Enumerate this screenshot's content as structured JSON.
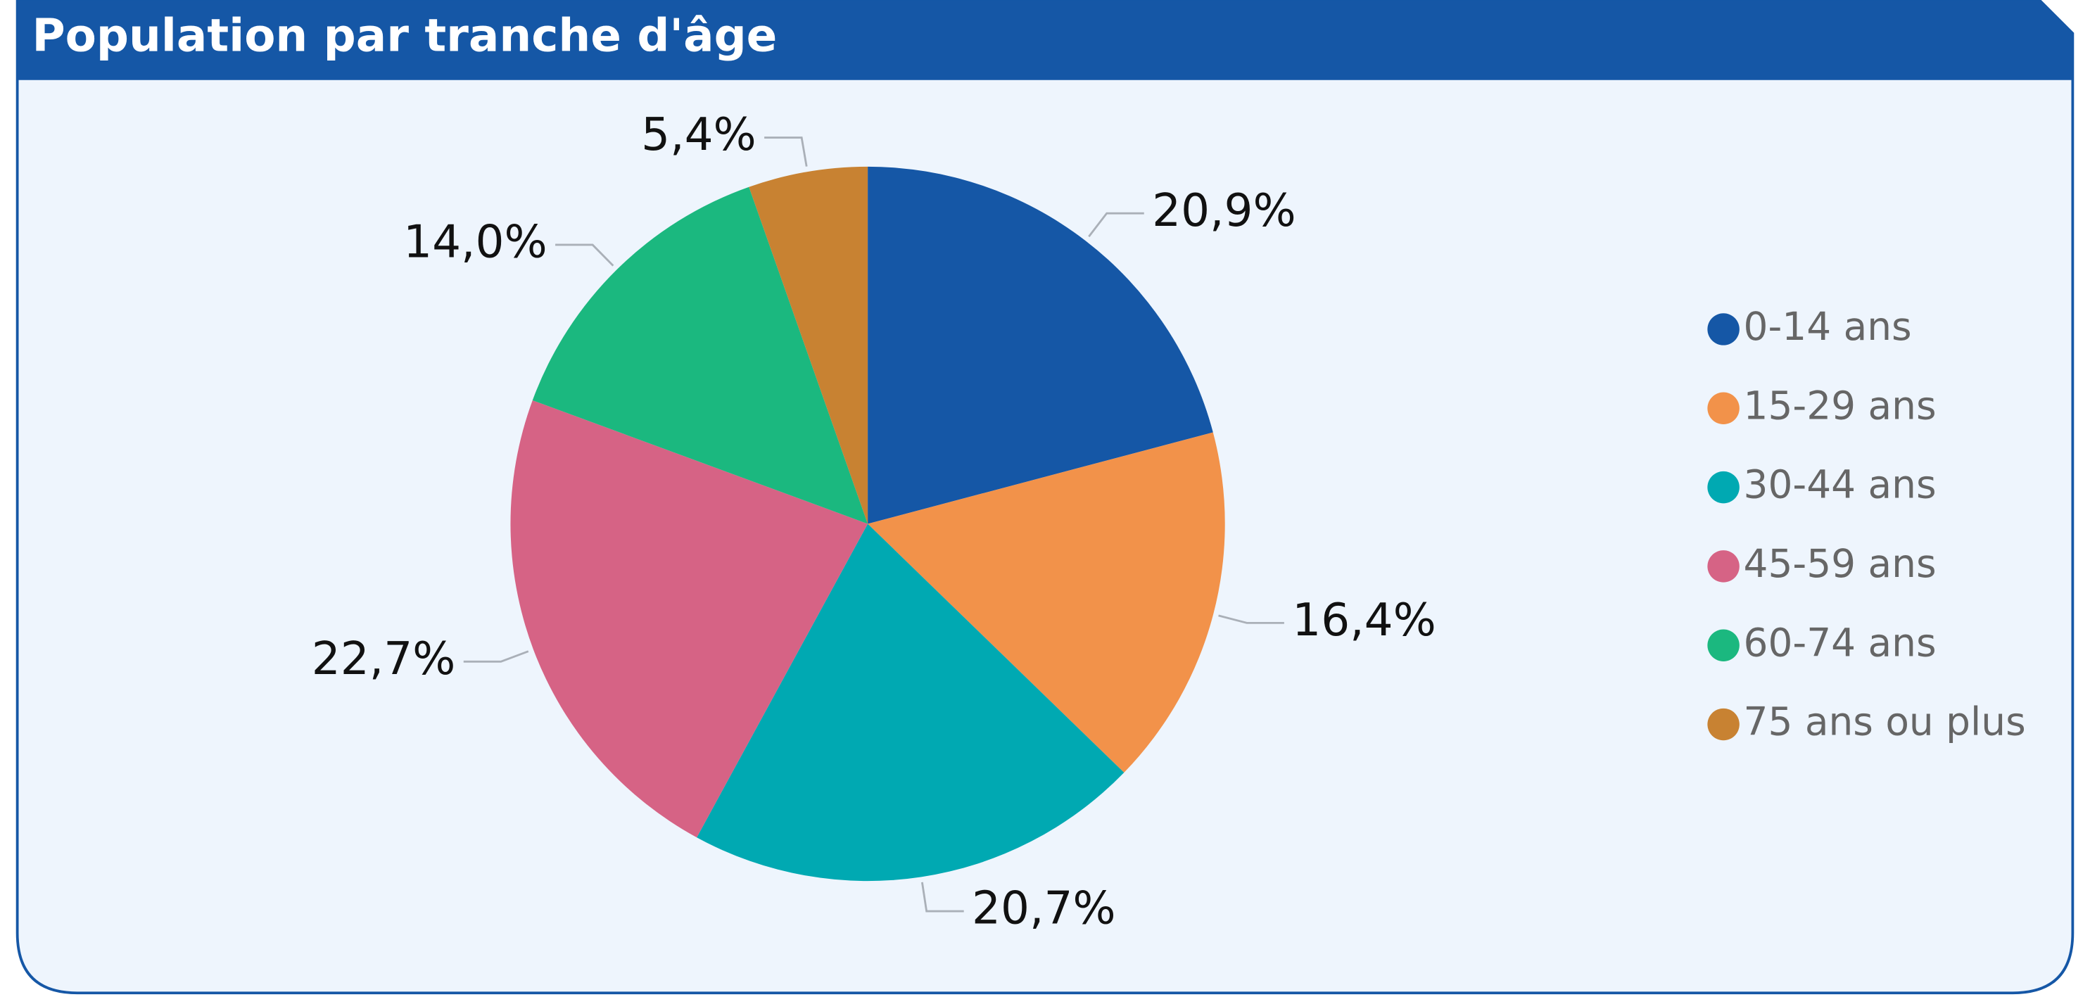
{
  "chart_data": {
    "type": "pie",
    "title": "Population par tranche d'âge",
    "categories": [
      "0-14 ans",
      "15-29 ans",
      "30-44 ans",
      "45-59 ans",
      "60-74 ans",
      "75 ans ou plus"
    ],
    "values": [
      20.9,
      16.4,
      20.7,
      22.7,
      14.0,
      5.4
    ],
    "value_labels": [
      "20,9%",
      "16,4%",
      "20,7%",
      "22,7%",
      "14,0%",
      "5,4%"
    ],
    "colors": [
      "#1557a6",
      "#f2924a",
      "#00a9b2",
      "#d66385",
      "#1bb87f",
      "#c88232"
    ],
    "legend": "right"
  }
}
